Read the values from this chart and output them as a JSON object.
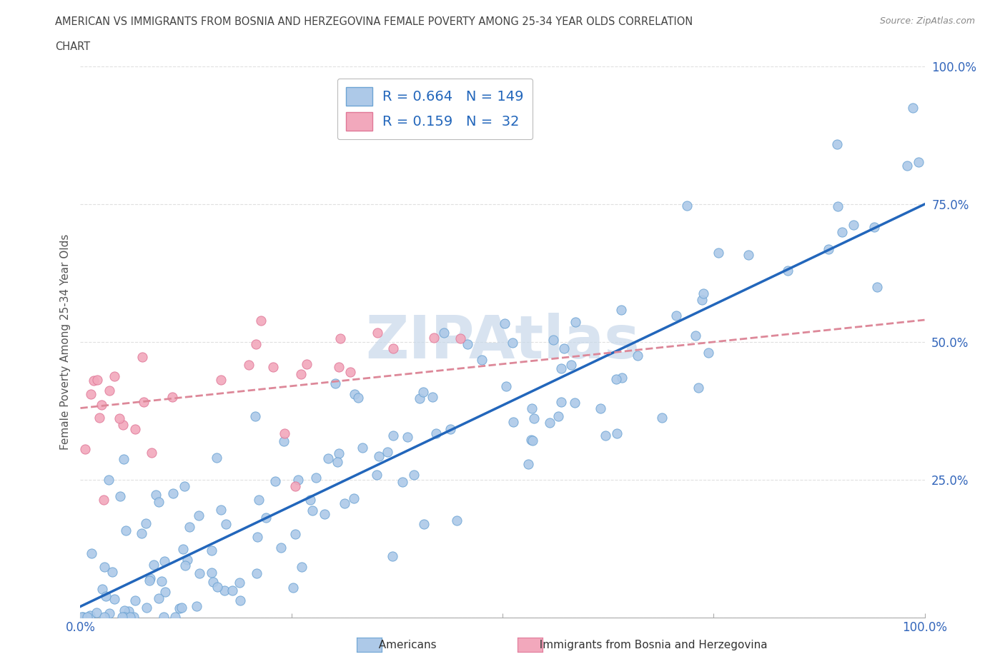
{
  "title_line1": "AMERICAN VS IMMIGRANTS FROM BOSNIA AND HERZEGOVINA FEMALE POVERTY AMONG 25-34 YEAR OLDS CORRELATION",
  "title_line2": "CHART",
  "source": "Source: ZipAtlas.com",
  "ylabel": "Female Poverty Among 25-34 Year Olds",
  "R_american": 0.664,
  "N_american": 149,
  "R_bosnia": 0.159,
  "N_bosnia": 32,
  "american_color": "#adc9e8",
  "american_edge_color": "#6da4d4",
  "bosnia_color": "#f2a8bc",
  "bosnia_edge_color": "#e07898",
  "american_line_color": "#2266bb",
  "bosnia_line_color": "#dd8899",
  "watermark_color": "#c8d8ea",
  "background_color": "#ffffff",
  "grid_color": "#dddddd",
  "title_color": "#444444",
  "tick_color": "#3366bb",
  "legend_text_color": "#2266bb",
  "am_intercept": 0.02,
  "am_slope": 0.73,
  "bo_intercept": 0.38,
  "bo_slope": 0.16
}
